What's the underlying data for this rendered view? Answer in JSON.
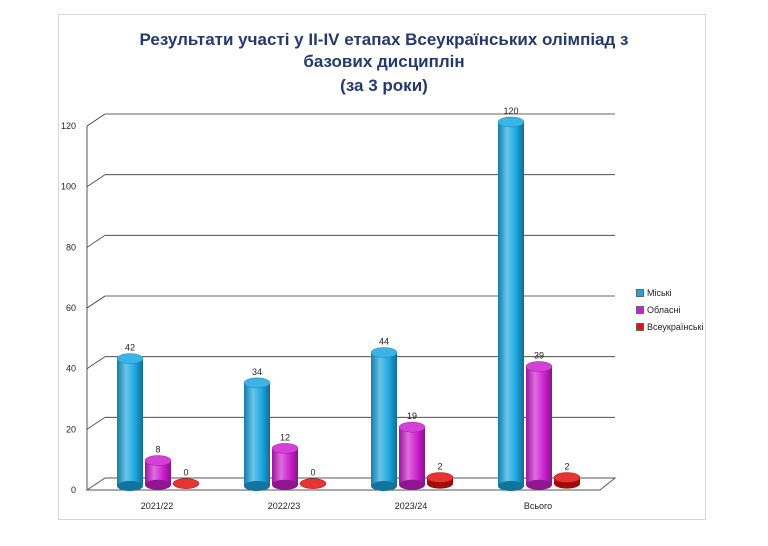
{
  "chart_data": {
    "type": "bar",
    "title_lines": [
      "Результати участі у ІІ-ІV етапах Всеукраїнських олімпіад  з",
      "базових дисциплін",
      "(за 3 роки)"
    ],
    "categories": [
      "2021/22",
      "2022/23",
      "2023/24",
      "Всього"
    ],
    "series": [
      {
        "name": "Міські",
        "values": [
          42,
          34,
          44,
          120
        ],
        "color": "#1aa6e0"
      },
      {
        "name": "Обласні",
        "values": [
          8,
          12,
          19,
          39
        ],
        "color": "#cc1fcf"
      },
      {
        "name": "Всеукраїнські",
        "values": [
          0,
          0,
          2,
          2
        ],
        "color": "#e01010"
      }
    ],
    "y_ticks": [
      0,
      20,
      40,
      60,
      80,
      100,
      120
    ],
    "ylim": [
      0,
      120
    ],
    "legend_position": "right",
    "grid": true
  }
}
